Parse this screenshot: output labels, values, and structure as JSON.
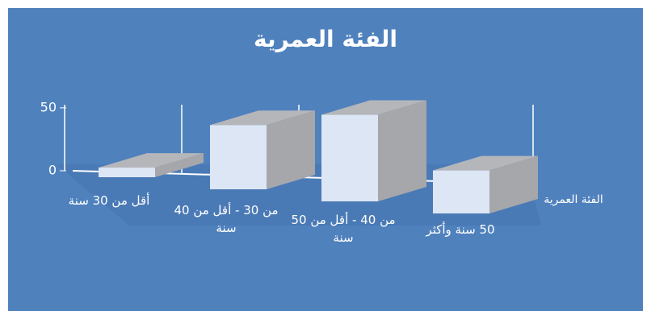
{
  "chart_data": {
    "type": "bar3d",
    "title": "الفئة العمرية",
    "categories": [
      "أقل من 30 سنة",
      "من 30 - أقل من 40 سنة",
      "من 40 - أقل من 50 سنة",
      "50 سنة وأكثر"
    ],
    "series": [
      {
        "name": "الفئة العمرية",
        "color": "#dce6f5",
        "values": [
          6,
          36,
          44,
          20
        ]
      }
    ],
    "ylim": [
      0,
      50
    ],
    "yticks": [
      0,
      50
    ],
    "grid": false
  }
}
